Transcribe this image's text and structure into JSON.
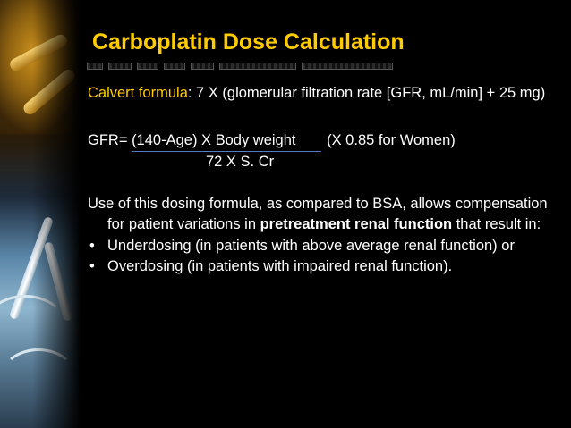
{
  "slide": {
    "title": "Carboplatin Dose Calculation",
    "calvert": {
      "label": "Calvert formula",
      "text": ": 7 X (glomerular filtration rate [GFR, mL/min] + 25 mg)"
    },
    "gfr": {
      "lead": "GFR= ",
      "numerator": "(140-Age) X Body weight",
      "note": "(X 0.85 for Women)",
      "denominator": "72 X S. Cr"
    },
    "use": {
      "intro": "Use of this dosing formula, as compared to BSA, allows compensation for patient variations in ",
      "bold": "pretreatment renal function",
      "outro": " that result in:"
    },
    "bullets": [
      {
        "marker": "•",
        "text": "Underdosing (in patients with above average renal function) or"
      },
      {
        "marker": "•",
        "text": "Overdosing (in patients with impaired renal function)."
      }
    ]
  },
  "colors": {
    "background": "#000000",
    "title": "#ffcc00",
    "body_text": "#ffffff",
    "fraction_bar": "#5a78c8"
  },
  "icons": {
    "photo_strip": "medical-collage-image"
  }
}
